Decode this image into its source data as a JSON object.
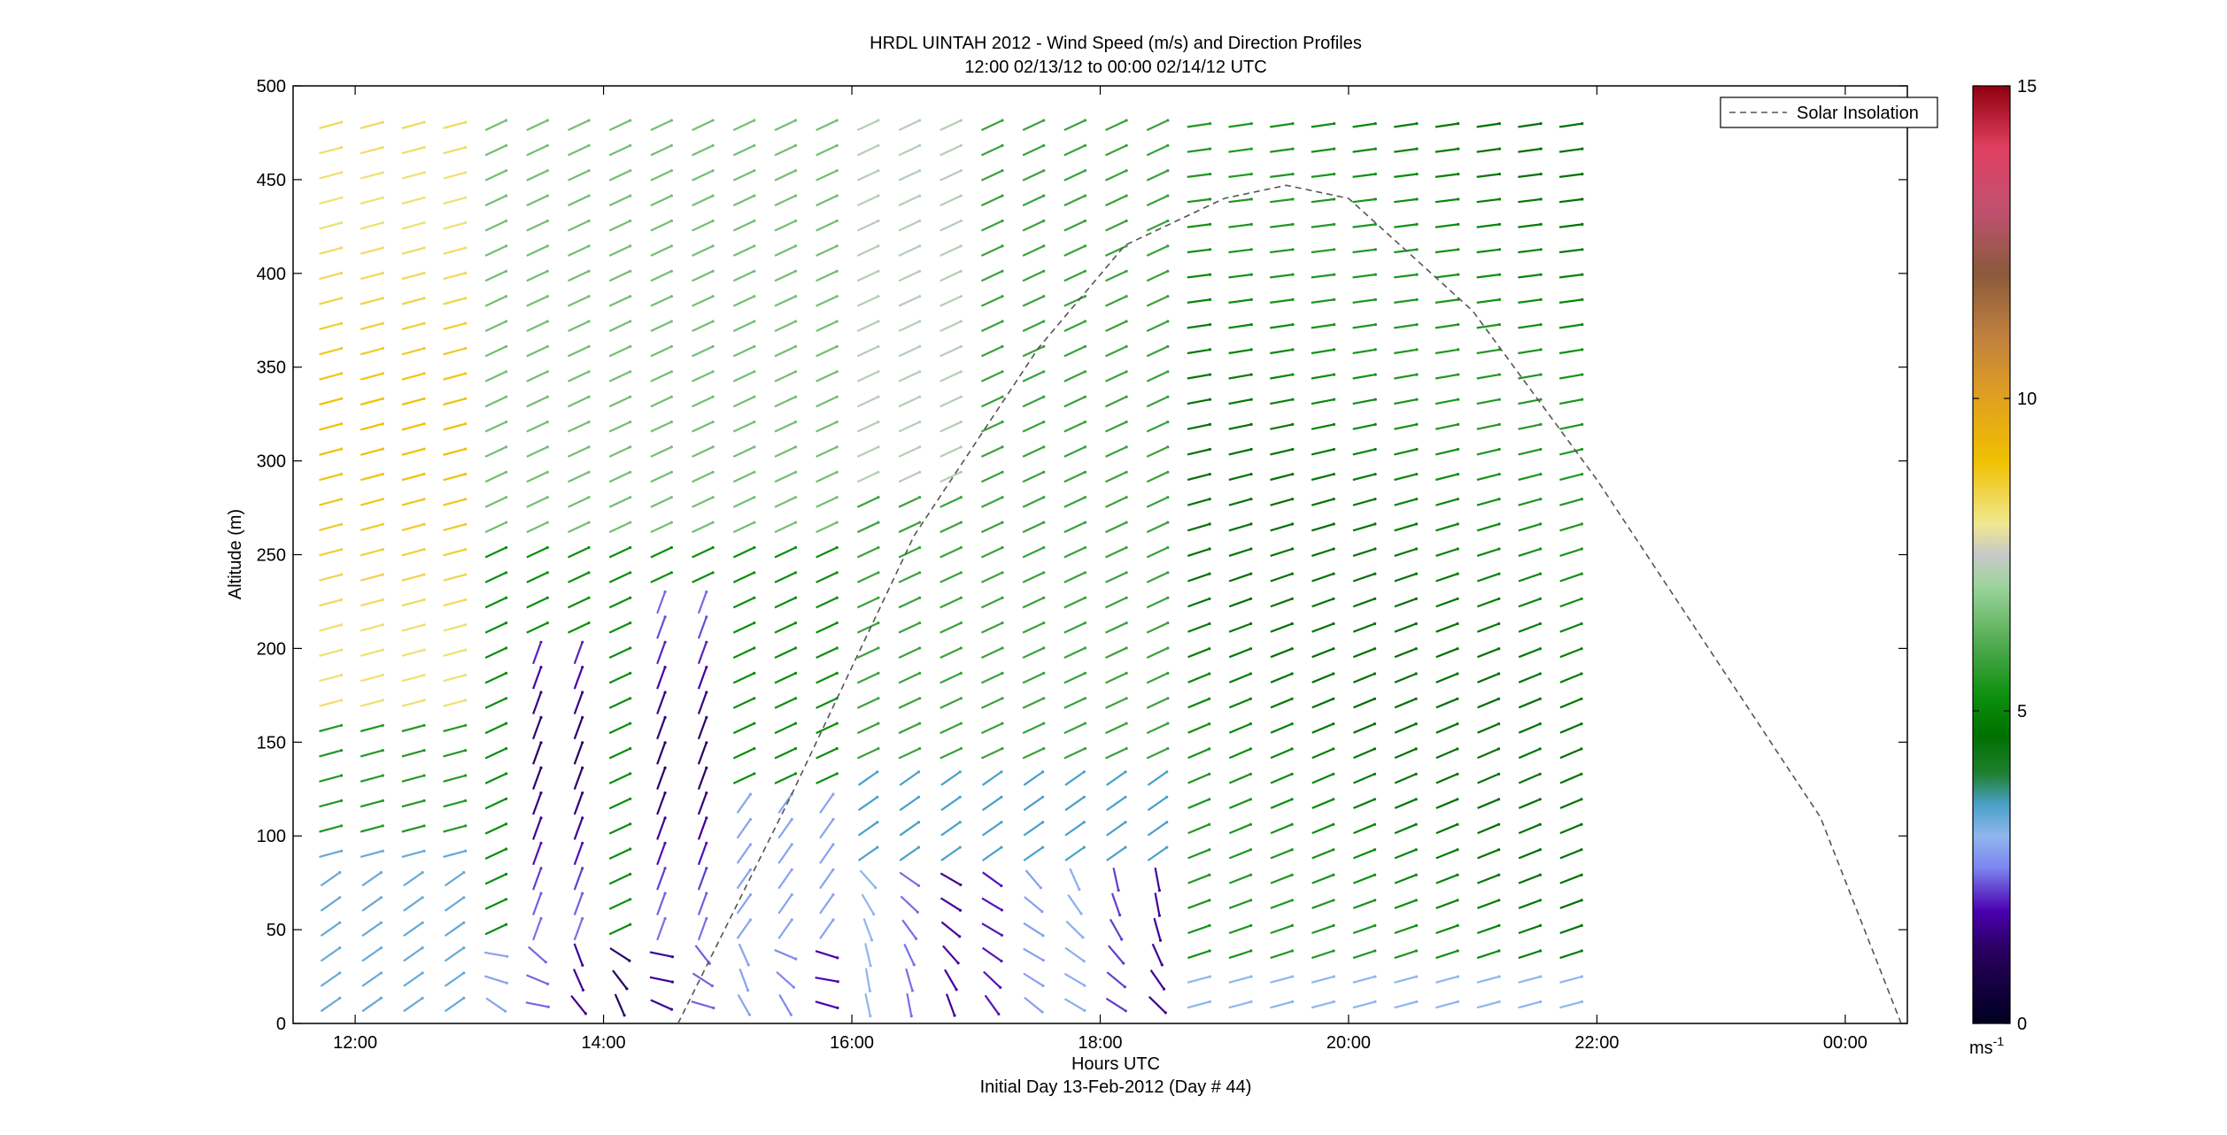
{
  "chart_data": {
    "type": "quiver",
    "title": "HRDL UINTAH 2012 - Wind Speed (m/s) and Direction Profiles",
    "subtitle": "12:00 02/13/12 to 00:00 02/14/12  UTC",
    "xlabel": "Hours UTC",
    "xlabel_secondary": "Initial Day 13-Feb-2012 (Day # 44)",
    "ylabel": "Altitude (m)",
    "x_range_hours": [
      11.5,
      24.5
    ],
    "ylim": [
      0,
      500
    ],
    "x_ticks": [
      {
        "value": 12,
        "label": "12:00"
      },
      {
        "value": 14,
        "label": "14:00"
      },
      {
        "value": 16,
        "label": "16:00"
      },
      {
        "value": 18,
        "label": "18:00"
      },
      {
        "value": 20,
        "label": "20:00"
      },
      {
        "value": 22,
        "label": "22:00"
      },
      {
        "value": 24,
        "label": "00:00"
      }
    ],
    "y_ticks": [
      0,
      50,
      100,
      150,
      200,
      250,
      300,
      350,
      400,
      450,
      500
    ],
    "colorbar": {
      "range": [
        0,
        15
      ],
      "ticks": [
        0,
        5,
        10,
        15
      ],
      "unit": "ms-1",
      "unit_base": "ms",
      "unit_exp": "-1",
      "stops": [
        {
          "v": 0,
          "color": "#000020"
        },
        {
          "v": 1.2,
          "color": "#2a0060"
        },
        {
          "v": 1.8,
          "color": "#4b00b0"
        },
        {
          "v": 2.5,
          "color": "#7e86f0"
        },
        {
          "v": 3.0,
          "color": "#8fb6ee"
        },
        {
          "v": 3.5,
          "color": "#4aa0c8"
        },
        {
          "v": 4.0,
          "color": "#1f8030"
        },
        {
          "v": 4.6,
          "color": "#007000"
        },
        {
          "v": 5.2,
          "color": "#0b8e0b"
        },
        {
          "v": 6.0,
          "color": "#4aa84a"
        },
        {
          "v": 7.0,
          "color": "#9cd49c"
        },
        {
          "v": 7.5,
          "color": "#c8c8c8"
        },
        {
          "v": 8.0,
          "color": "#f0e890"
        },
        {
          "v": 9.0,
          "color": "#f0c000"
        },
        {
          "v": 10.0,
          "color": "#e0a020"
        },
        {
          "v": 11.0,
          "color": "#c08040"
        },
        {
          "v": 12.0,
          "color": "#8a5a3c"
        },
        {
          "v": 13.0,
          "color": "#c05070"
        },
        {
          "v": 14.0,
          "color": "#e04060"
        },
        {
          "v": 15.0,
          "color": "#900010"
        }
      ]
    },
    "legend": {
      "label": "Solar Insolation",
      "style": "dashed",
      "color": "#555555",
      "placement": "top-right"
    },
    "wind_grid": {
      "time_start_hours": 11.8,
      "time_step_hours": 0.333,
      "time_steps": 31,
      "altitude_start_m": 10,
      "altitude_step_m": 13.4,
      "altitude_steps": 36
    },
    "solar_insolation_curve": [
      {
        "hour": 14.6,
        "alt": 0
      },
      {
        "hour": 15.5,
        "alt": 120
      },
      {
        "hour": 16.5,
        "alt": 260
      },
      {
        "hour": 17.5,
        "alt": 360
      },
      {
        "hour": 18.2,
        "alt": 415
      },
      {
        "hour": 19.0,
        "alt": 440
      },
      {
        "hour": 19.5,
        "alt": 447
      },
      {
        "hour": 20.0,
        "alt": 440
      },
      {
        "hour": 21.0,
        "alt": 380
      },
      {
        "hour": 22.0,
        "alt": 290
      },
      {
        "hour": 23.0,
        "alt": 190
      },
      {
        "hour": 23.8,
        "alt": 110
      },
      {
        "hour": 24.45,
        "alt": 0
      }
    ]
  }
}
